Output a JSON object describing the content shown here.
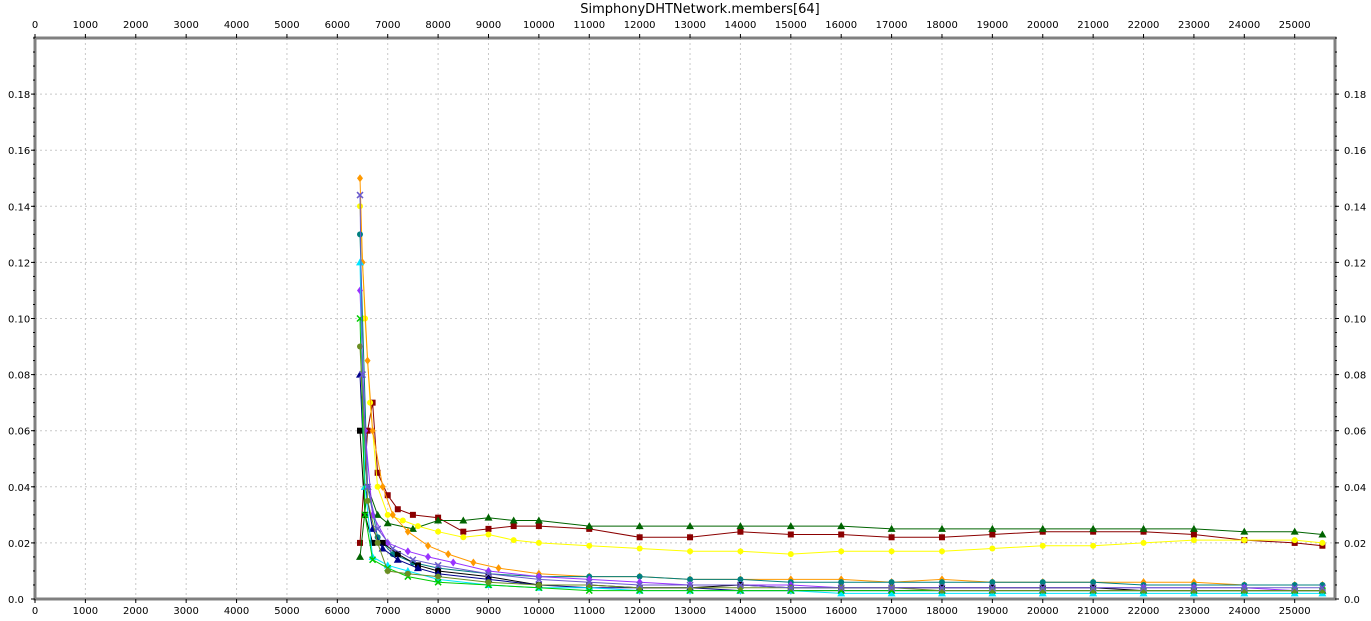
{
  "chart_data": {
    "type": "line",
    "title": "SimphonyDHTNetwork.members[64]",
    "xlabel": "",
    "ylabel": "",
    "xlim": [
      0,
      25800
    ],
    "ylim": [
      0,
      0.2
    ],
    "x_ticks": [
      0,
      1000,
      2000,
      3000,
      4000,
      5000,
      6000,
      7000,
      8000,
      9000,
      10000,
      11000,
      12000,
      13000,
      14000,
      15000,
      16000,
      17000,
      18000,
      19000,
      20000,
      21000,
      22000,
      23000,
      24000,
      25000
    ],
    "y_ticks": [
      0.0,
      0.02,
      0.04,
      0.06,
      0.08,
      0.1,
      0.12,
      0.14,
      0.16,
      0.18
    ],
    "y_tick_labels": [
      "0.0",
      "0.02",
      "0.04",
      "0.06",
      "0.08",
      "0.10",
      "0.12",
      "0.14",
      "0.16",
      "0.18"
    ],
    "grid": true,
    "legend": "none",
    "series": [
      {
        "color": "#8b0000",
        "marker": "square",
        "x": [
          6450,
          6600,
          6700,
          6800,
          7000,
          7200,
          7500,
          8000,
          8500,
          9000,
          9500,
          10000,
          11000,
          12000,
          13000,
          14000,
          15000,
          16000,
          17000,
          18000,
          19000,
          20000,
          21000,
          22000,
          23000,
          24000,
          25000,
          25550
        ],
        "y": [
          0.02,
          0.06,
          0.07,
          0.045,
          0.037,
          0.032,
          0.03,
          0.029,
          0.024,
          0.025,
          0.026,
          0.026,
          0.025,
          0.022,
          0.022,
          0.024,
          0.023,
          0.023,
          0.022,
          0.022,
          0.023,
          0.024,
          0.024,
          0.024,
          0.023,
          0.021,
          0.02,
          0.019
        ]
      },
      {
        "color": "#006400",
        "marker": "triangle",
        "x": [
          6450,
          6600,
          6800,
          7000,
          7500,
          8000,
          8500,
          9000,
          9500,
          10000,
          11000,
          12000,
          13000,
          14000,
          15000,
          16000,
          17000,
          18000,
          19000,
          20000,
          21000,
          22000,
          23000,
          24000,
          25000,
          25550
        ],
        "y": [
          0.015,
          0.04,
          0.03,
          0.027,
          0.025,
          0.028,
          0.028,
          0.029,
          0.028,
          0.028,
          0.026,
          0.026,
          0.026,
          0.026,
          0.026,
          0.026,
          0.025,
          0.025,
          0.025,
          0.025,
          0.025,
          0.025,
          0.025,
          0.024,
          0.024,
          0.023
        ]
      },
      {
        "color": "#ffff00",
        "marker": "circle",
        "x": [
          6450,
          6550,
          6650,
          6800,
          7000,
          7300,
          7600,
          8000,
          8500,
          9000,
          9500,
          10000,
          11000,
          12000,
          13000,
          14000,
          15000,
          16000,
          17000,
          18000,
          19000,
          20000,
          21000,
          22000,
          23000,
          24000,
          25000,
          25550
        ],
        "y": [
          0.14,
          0.1,
          0.07,
          0.04,
          0.03,
          0.028,
          0.026,
          0.024,
          0.022,
          0.023,
          0.021,
          0.02,
          0.019,
          0.018,
          0.017,
          0.017,
          0.016,
          0.017,
          0.017,
          0.017,
          0.018,
          0.019,
          0.019,
          0.02,
          0.021,
          0.021,
          0.021,
          0.02
        ]
      },
      {
        "color": "#ff9900",
        "marker": "diamond",
        "x": [
          6450,
          6500,
          6600,
          6700,
          6900,
          7100,
          7400,
          7800,
          8200,
          8700,
          9200,
          10000,
          11000,
          12000,
          13000,
          14000,
          15000,
          16000,
          17000,
          18000,
          19000,
          20000,
          21000,
          22000,
          23000,
          24000,
          25000,
          25550
        ],
        "y": [
          0.15,
          0.12,
          0.085,
          0.06,
          0.04,
          0.03,
          0.024,
          0.019,
          0.016,
          0.013,
          0.011,
          0.009,
          0.008,
          0.008,
          0.007,
          0.007,
          0.007,
          0.007,
          0.006,
          0.007,
          0.006,
          0.006,
          0.006,
          0.006,
          0.006,
          0.005,
          0.005,
          0.005
        ]
      },
      {
        "color": "#008080",
        "marker": "circle",
        "x": [
          6450,
          6600,
          6800,
          7100,
          7500,
          8000,
          9000,
          10000,
          11000,
          12000,
          13000,
          14000,
          15000,
          16000,
          17000,
          18000,
          19000,
          20000,
          21000,
          22000,
          23000,
          24000,
          25000,
          25550
        ],
        "y": [
          0.13,
          0.04,
          0.022,
          0.016,
          0.013,
          0.011,
          0.009,
          0.008,
          0.008,
          0.008,
          0.007,
          0.007,
          0.006,
          0.006,
          0.006,
          0.006,
          0.006,
          0.006,
          0.006,
          0.005,
          0.005,
          0.005,
          0.005,
          0.005
        ]
      },
      {
        "color": "#9933ff",
        "marker": "diamond",
        "x": [
          6450,
          6550,
          6700,
          7000,
          7400,
          7800,
          8300,
          9000,
          10000,
          11000,
          12000,
          13000,
          14000,
          15000,
          16000,
          17000,
          18000,
          19000,
          20000,
          21000,
          22000,
          23000,
          24000,
          25000,
          25550
        ],
        "y": [
          0.11,
          0.06,
          0.03,
          0.02,
          0.017,
          0.015,
          0.013,
          0.01,
          0.008,
          0.007,
          0.006,
          0.005,
          0.005,
          0.005,
          0.004,
          0.004,
          0.004,
          0.004,
          0.004,
          0.004,
          0.004,
          0.004,
          0.004,
          0.003,
          0.003
        ]
      },
      {
        "color": "#000000",
        "marker": "square",
        "x": [
          6450,
          6550,
          6700,
          6900,
          7200,
          7600,
          8000,
          9000,
          10000,
          11000,
          12000,
          13000,
          14000,
          15000,
          16000,
          17000,
          18000,
          19000,
          20000,
          21000,
          22000,
          23000,
          24000,
          25000,
          25550
        ],
        "y": [
          0.06,
          0.03,
          0.02,
          0.02,
          0.016,
          0.012,
          0.01,
          0.008,
          0.005,
          0.005,
          0.004,
          0.004,
          0.005,
          0.004,
          0.004,
          0.004,
          0.004,
          0.004,
          0.004,
          0.004,
          0.003,
          0.003,
          0.003,
          0.003,
          0.003
        ]
      },
      {
        "color": "#00008b",
        "marker": "triangle",
        "x": [
          6450,
          6550,
          6700,
          6900,
          7200,
          7600,
          8000,
          9000,
          10000,
          11000,
          12000,
          13000,
          14000,
          15000,
          16000,
          17000,
          18000,
          19000,
          20000,
          21000,
          22000,
          23000,
          24000,
          25000,
          25550
        ],
        "y": [
          0.08,
          0.04,
          0.025,
          0.018,
          0.014,
          0.011,
          0.009,
          0.007,
          0.005,
          0.004,
          0.004,
          0.004,
          0.003,
          0.003,
          0.003,
          0.003,
          0.003,
          0.003,
          0.003,
          0.003,
          0.003,
          0.003,
          0.003,
          0.003,
          0.003
        ]
      },
      {
        "color": "#00e5ff",
        "marker": "triangle",
        "x": [
          6450,
          6550,
          6700,
          7000,
          7400,
          8000,
          9000,
          10000,
          11000,
          12000,
          13000,
          14000,
          15000,
          16000,
          17000,
          18000,
          19000,
          20000,
          21000,
          22000,
          23000,
          24000,
          25000,
          25550
        ],
        "y": [
          0.12,
          0.04,
          0.015,
          0.012,
          0.01,
          0.007,
          0.005,
          0.004,
          0.004,
          0.003,
          0.003,
          0.003,
          0.003,
          0.002,
          0.002,
          0.002,
          0.002,
          0.002,
          0.002,
          0.002,
          0.002,
          0.002,
          0.002,
          0.002
        ]
      },
      {
        "color": "#00cc00",
        "marker": "cross",
        "x": [
          6450,
          6550,
          6700,
          7000,
          7400,
          8000,
          9000,
          10000,
          11000,
          12000,
          13000,
          14000,
          15000,
          16000,
          17000,
          18000,
          19000,
          20000,
          21000,
          22000,
          23000,
          24000,
          25000,
          25550
        ],
        "y": [
          0.1,
          0.03,
          0.014,
          0.011,
          0.008,
          0.006,
          0.005,
          0.004,
          0.003,
          0.003,
          0.003,
          0.003,
          0.003,
          0.003,
          0.003,
          0.003,
          0.003,
          0.003,
          0.003,
          0.003,
          0.003,
          0.003,
          0.003,
          0.003
        ]
      },
      {
        "color": "#6b8e23",
        "marker": "circle",
        "x": [
          6450,
          6600,
          6800,
          7000,
          7400,
          8000,
          9000,
          10000,
          11000,
          12000,
          13000,
          14000,
          15000,
          16000,
          17000,
          18000,
          19000,
          20000,
          21000,
          22000,
          23000,
          24000,
          25000,
          25550
        ],
        "y": [
          0.09,
          0.035,
          0.02,
          0.01,
          0.009,
          0.008,
          0.006,
          0.005,
          0.005,
          0.004,
          0.004,
          0.004,
          0.004,
          0.004,
          0.004,
          0.003,
          0.003,
          0.003,
          0.003,
          0.003,
          0.003,
          0.003,
          0.003,
          0.003
        ]
      },
      {
        "color": "#6a5acd",
        "marker": "cross",
        "x": [
          6450,
          6500,
          6600,
          6800,
          7100,
          7500,
          8000,
          9000,
          10000,
          11000,
          12000,
          13000,
          14000,
          15000,
          16000,
          17000,
          18000,
          19000,
          20000,
          21000,
          22000,
          23000,
          24000,
          25000,
          25550
        ],
        "y": [
          0.144,
          0.08,
          0.04,
          0.025,
          0.018,
          0.014,
          0.012,
          0.009,
          0.007,
          0.006,
          0.005,
          0.005,
          0.005,
          0.004,
          0.004,
          0.004,
          0.004,
          0.004,
          0.004,
          0.004,
          0.004,
          0.004,
          0.004,
          0.004,
          0.004
        ]
      }
    ]
  }
}
